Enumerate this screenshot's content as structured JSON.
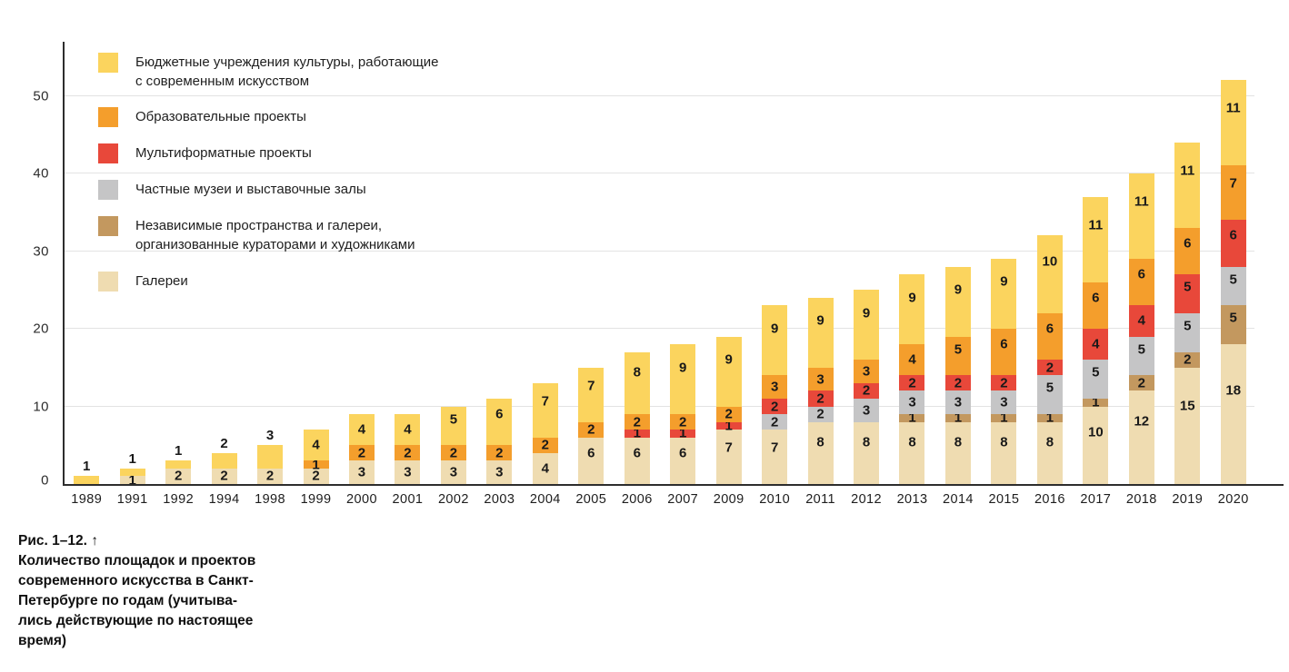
{
  "figure": {
    "caption": "Рис. 1–12. ↑\nКоличество площадок и проектов\nсовременного искусства в Санкт-\nПетербурге по годам (учитыва-\nлись действующие по настоящее\nвремя)"
  },
  "legend": {
    "items": [
      {
        "id": "budget-institutions",
        "label": "Бюджетные учреждения культуры, работающие\nс современным искусством",
        "color": "#FBD45E"
      },
      {
        "id": "education-projects",
        "label": "Образовательные проекты",
        "color": "#F49E2C"
      },
      {
        "id": "multiformat-projects",
        "label": "Мультиформатные проекты",
        "color": "#E8483A"
      },
      {
        "id": "private-museums",
        "label": "Частные музеи и выставочные залы",
        "color": "#C5C5C6"
      },
      {
        "id": "independent-spaces",
        "label": "Независимые пространства и галереи,\nорганизованные кураторами и художниками",
        "color": "#C3985F"
      },
      {
        "id": "galleries",
        "label": "Галереи",
        "color": "#EFDCB1"
      }
    ]
  },
  "chart_data": {
    "type": "bar",
    "stacked": true,
    "title": "",
    "xlabel": "",
    "ylabel": "",
    "ylim": [
      0,
      55
    ],
    "yticks": [
      0,
      10,
      20,
      30,
      40,
      50
    ],
    "grid": "horizontal",
    "legend_position": "top-left-inside",
    "categories": [
      "1989",
      "1991",
      "1992",
      "1994",
      "1998",
      "1999",
      "2000",
      "2001",
      "2002",
      "2003",
      "2004",
      "2005",
      "2006",
      "2007",
      "2009",
      "2010",
      "2011",
      "2012",
      "2013",
      "2014",
      "2015",
      "2016",
      "2017",
      "2018",
      "2019",
      "2020"
    ],
    "series": [
      {
        "name": "Галереи",
        "color": "#EFDCB1",
        "values": [
          0,
          1,
          2,
          2,
          2,
          2,
          3,
          3,
          3,
          3,
          4,
          6,
          6,
          6,
          7,
          7,
          8,
          8,
          8,
          8,
          8,
          8,
          10,
          12,
          15,
          18
        ]
      },
      {
        "name": "Независимые пространства и галереи, организованные кураторами и художниками",
        "color": "#C3985F",
        "values": [
          0,
          0,
          0,
          0,
          0,
          0,
          0,
          0,
          0,
          0,
          0,
          0,
          0,
          0,
          0,
          0,
          0,
          0,
          1,
          1,
          1,
          1,
          1,
          2,
          2,
          5
        ]
      },
      {
        "name": "Частные музеи и выставочные залы",
        "color": "#C5C5C6",
        "values": [
          0,
          0,
          0,
          0,
          0,
          0,
          0,
          0,
          0,
          0,
          0,
          0,
          0,
          0,
          0,
          2,
          2,
          3,
          3,
          3,
          3,
          5,
          5,
          5,
          5,
          5
        ]
      },
      {
        "name": "Мультиформатные проекты",
        "color": "#E8483A",
        "values": [
          0,
          0,
          0,
          0,
          0,
          0,
          0,
          0,
          0,
          0,
          0,
          0,
          1,
          1,
          1,
          2,
          2,
          2,
          2,
          2,
          2,
          2,
          4,
          4,
          5,
          6
        ]
      },
      {
        "name": "Образовательные проекты",
        "color": "#F49E2C",
        "values": [
          0,
          0,
          0,
          0,
          0,
          1,
          2,
          2,
          2,
          2,
          2,
          2,
          2,
          2,
          2,
          3,
          3,
          3,
          4,
          5,
          6,
          6,
          6,
          6,
          6,
          7
        ]
      },
      {
        "name": "Бюджетные учреждения культуры, работающие с современным искусством",
        "color": "#FBD45E",
        "values": [
          1,
          1,
          1,
          2,
          3,
          4,
          4,
          4,
          5,
          6,
          7,
          7,
          8,
          9,
          9,
          9,
          9,
          9,
          9,
          9,
          9,
          10,
          11,
          11,
          11,
          11
        ]
      }
    ],
    "totals": [
      1,
      2,
      3,
      4,
      5,
      7,
      9,
      9,
      10,
      11,
      13,
      15,
      17,
      18,
      19,
      23,
      24,
      25,
      27,
      28,
      29,
      32,
      37,
      40,
      44,
      52
    ]
  }
}
